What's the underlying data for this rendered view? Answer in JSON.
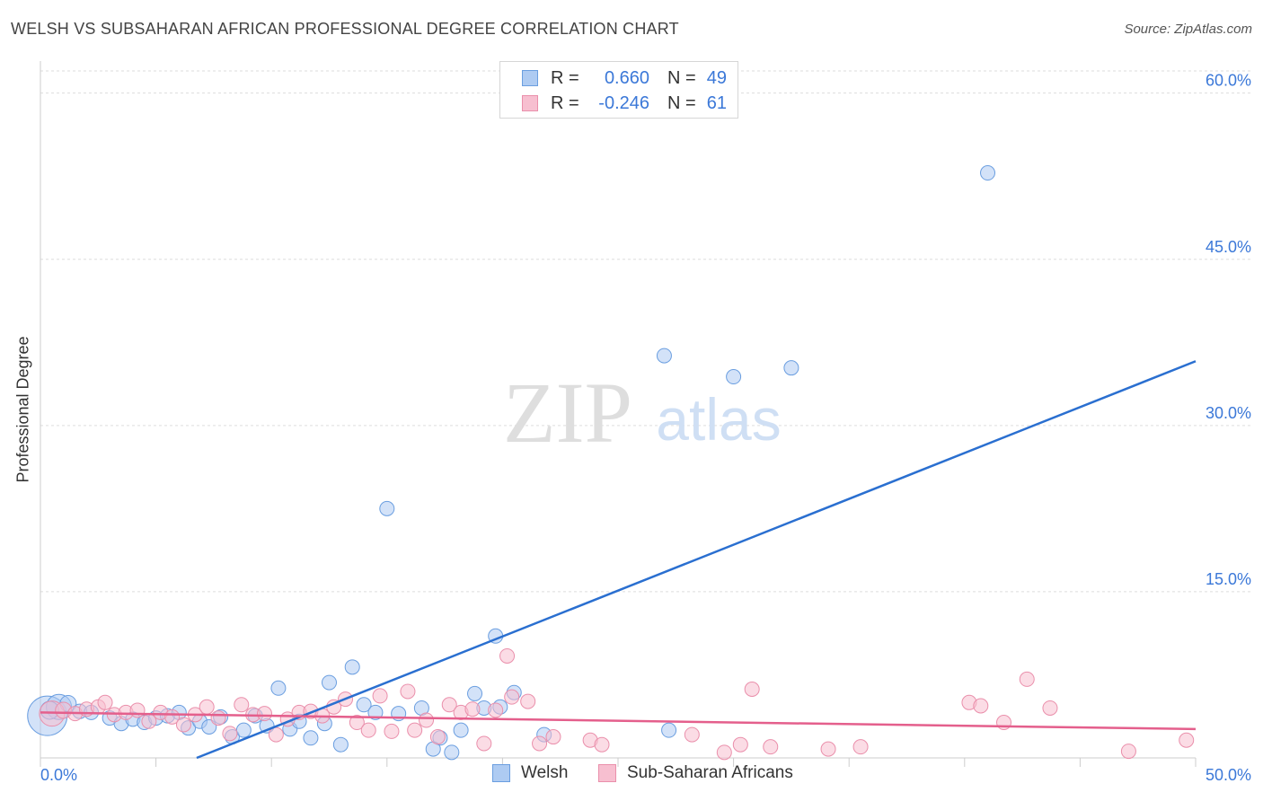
{
  "header": {
    "title": "WELSH VS SUBSAHARAN AFRICAN PROFESSIONAL DEGREE CORRELATION CHART",
    "source": "Source: ZipAtlas.com"
  },
  "legend": {
    "rows": [
      {
        "r_label": "R =",
        "r_value": "0.660",
        "n_label": "N =",
        "n_value": "49"
      },
      {
        "r_label": "R =",
        "r_value": "-0.246",
        "n_label": "N =",
        "n_value": "61"
      }
    ]
  },
  "bottom_legend": [
    "Welsh",
    "Sub-Saharan Africans"
  ],
  "watermark": {
    "zip": "ZIP",
    "atlas": "atlas"
  },
  "colors": {
    "welsh_fill": "#aecbf2",
    "welsh_stroke": "#6a9ee0",
    "welsh_line": "#2a6fd0",
    "ssa_fill": "#f7bfd0",
    "ssa_stroke": "#ea8fab",
    "ssa_line": "#e45f8c",
    "tick_text": "#3b78d8",
    "grid": "#dddddd"
  },
  "chart_data": {
    "type": "scatter",
    "title": "WELSH VS SUBSAHARAN AFRICAN PROFESSIONAL DEGREE CORRELATION CHART",
    "xlabel": "",
    "ylabel": "Professional Degree",
    "xlim": [
      0,
      50
    ],
    "ylim": [
      0,
      62
    ],
    "x_tick_labels": [
      "0.0%",
      "50.0%"
    ],
    "y_ticks": [
      15,
      30,
      45,
      60
    ],
    "y_tick_labels": [
      "15.0%",
      "30.0%",
      "45.0%",
      "60.0%"
    ],
    "grid": true,
    "legend_position": "top-center",
    "series": [
      {
        "name": "Welsh",
        "r": 0.66,
        "n": 49,
        "trend": {
          "x": [
            0,
            50
          ],
          "y": [
            -5.6,
            35.8
          ]
        },
        "points": [
          [
            0.3,
            3.8,
            22
          ],
          [
            0.8,
            4.6,
            14
          ],
          [
            1.2,
            4.9,
            9
          ],
          [
            1.7,
            4.2,
            8
          ],
          [
            2.2,
            4.1,
            8
          ],
          [
            3.0,
            3.6,
            8
          ],
          [
            3.5,
            3.1,
            8
          ],
          [
            4.0,
            3.5,
            8
          ],
          [
            4.5,
            3.2,
            8
          ],
          [
            5.0,
            3.6,
            8
          ],
          [
            5.5,
            3.8,
            8
          ],
          [
            6.0,
            4.1,
            8
          ],
          [
            6.4,
            2.7,
            8
          ],
          [
            6.9,
            3.3,
            8
          ],
          [
            7.3,
            2.8,
            8
          ],
          [
            7.8,
            3.7,
            8
          ],
          [
            8.3,
            1.9,
            8
          ],
          [
            8.8,
            2.5,
            8
          ],
          [
            9.3,
            3.8,
            8
          ],
          [
            9.8,
            2.9,
            8
          ],
          [
            10.3,
            6.3,
            8
          ],
          [
            10.8,
            2.6,
            8
          ],
          [
            11.2,
            3.3,
            8
          ],
          [
            11.7,
            1.8,
            8
          ],
          [
            12.3,
            3.1,
            8
          ],
          [
            12.5,
            6.8,
            8
          ],
          [
            13.0,
            1.2,
            8
          ],
          [
            13.5,
            8.2,
            8
          ],
          [
            14.0,
            4.8,
            8
          ],
          [
            14.5,
            4.1,
            8
          ],
          [
            15.0,
            22.5,
            8
          ],
          [
            15.5,
            4.0,
            8
          ],
          [
            16.5,
            4.5,
            8
          ],
          [
            17.3,
            1.8,
            8
          ],
          [
            17.0,
            0.8,
            8
          ],
          [
            17.8,
            0.5,
            8
          ],
          [
            18.2,
            2.5,
            8
          ],
          [
            18.8,
            5.8,
            8
          ],
          [
            19.2,
            4.5,
            8
          ],
          [
            19.7,
            11.0,
            8
          ],
          [
            19.9,
            4.6,
            8
          ],
          [
            20.5,
            5.9,
            8
          ],
          [
            21.8,
            2.1,
            8
          ],
          [
            27.0,
            36.3,
            8
          ],
          [
            27.2,
            2.5,
            8
          ],
          [
            30.0,
            34.4,
            8
          ],
          [
            32.5,
            35.2,
            8
          ],
          [
            41.0,
            52.8,
            8
          ],
          [
            0.4,
            4.3,
            10
          ]
        ]
      },
      {
        "name": "Sub-Saharan Africans",
        "r": -0.246,
        "n": 61,
        "trend": {
          "x": [
            0,
            50
          ],
          "y": [
            4.1,
            2.6
          ]
        },
        "points": [
          [
            0.5,
            4.0,
            14
          ],
          [
            1.0,
            4.3,
            9
          ],
          [
            1.5,
            4.0,
            8
          ],
          [
            2.0,
            4.4,
            8
          ],
          [
            2.5,
            4.6,
            8
          ],
          [
            2.8,
            5.0,
            8
          ],
          [
            3.2,
            3.9,
            8
          ],
          [
            3.7,
            4.1,
            8
          ],
          [
            4.2,
            4.3,
            8
          ],
          [
            4.7,
            3.3,
            8
          ],
          [
            5.2,
            4.1,
            8
          ],
          [
            5.7,
            3.7,
            8
          ],
          [
            6.2,
            3.0,
            8
          ],
          [
            6.7,
            3.9,
            8
          ],
          [
            7.2,
            4.6,
            8
          ],
          [
            7.7,
            3.6,
            8
          ],
          [
            8.2,
            2.2,
            8
          ],
          [
            8.7,
            4.8,
            8
          ],
          [
            9.2,
            3.9,
            8
          ],
          [
            9.7,
            4.0,
            8
          ],
          [
            10.2,
            2.1,
            8
          ],
          [
            10.7,
            3.5,
            8
          ],
          [
            11.2,
            4.1,
            8
          ],
          [
            11.7,
            4.2,
            8
          ],
          [
            12.2,
            3.8,
            8
          ],
          [
            12.7,
            4.6,
            8
          ],
          [
            13.2,
            5.3,
            8
          ],
          [
            13.7,
            3.2,
            8
          ],
          [
            14.2,
            2.5,
            8
          ],
          [
            14.7,
            5.6,
            8
          ],
          [
            15.2,
            2.4,
            8
          ],
          [
            15.9,
            6.0,
            8
          ],
          [
            16.2,
            2.5,
            8
          ],
          [
            16.7,
            3.4,
            8
          ],
          [
            17.2,
            1.9,
            8
          ],
          [
            17.7,
            4.8,
            8
          ],
          [
            18.2,
            4.1,
            8
          ],
          [
            18.7,
            4.4,
            8
          ],
          [
            19.2,
            1.3,
            8
          ],
          [
            19.7,
            4.3,
            8
          ],
          [
            20.2,
            9.2,
            8
          ],
          [
            20.4,
            5.5,
            8
          ],
          [
            21.1,
            5.1,
            8
          ],
          [
            21.6,
            1.3,
            8
          ],
          [
            22.2,
            1.9,
            8
          ],
          [
            23.8,
            1.6,
            8
          ],
          [
            24.3,
            1.2,
            8
          ],
          [
            28.2,
            2.1,
            8
          ],
          [
            29.6,
            0.5,
            8
          ],
          [
            30.3,
            1.2,
            8
          ],
          [
            30.8,
            6.2,
            8
          ],
          [
            31.6,
            1.0,
            8
          ],
          [
            34.1,
            0.8,
            8
          ],
          [
            35.5,
            1.0,
            8
          ],
          [
            40.2,
            5.0,
            8
          ],
          [
            40.7,
            4.7,
            8
          ],
          [
            41.7,
            3.2,
            8
          ],
          [
            42.7,
            7.1,
            8
          ],
          [
            43.7,
            4.5,
            8
          ],
          [
            47.1,
            0.6,
            8
          ],
          [
            49.6,
            1.6,
            8
          ]
        ]
      }
    ]
  }
}
